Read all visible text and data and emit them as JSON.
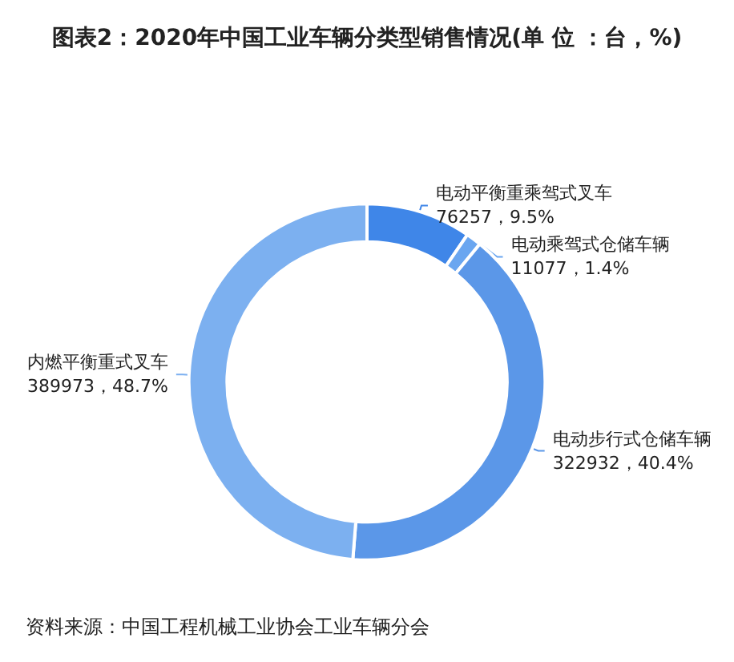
{
  "chart_data": {
    "type": "donut",
    "title": "图表2：2020年中国工业车辆分类型销售情况(单 位 ：台，%)",
    "categories": [
      "电动平衡重乘驾式叉车",
      "电动乘驾式仓储车辆",
      "电动步行式仓储车辆",
      "内燃平衡重式叉车"
    ],
    "values": [
      76257,
      11077,
      322932,
      389973
    ],
    "value_labels": [
      "76257，9.5%",
      "11077，1.4%",
      "322932，40.4%",
      "389973，48.7%"
    ],
    "colors": [
      "#3f86e8",
      "#6aa6f0",
      "#5b97e8",
      "#7cb0f0"
    ],
    "annotations": [
      "资料来源：中国工程机械工业协会工业车辆分会"
    ]
  }
}
